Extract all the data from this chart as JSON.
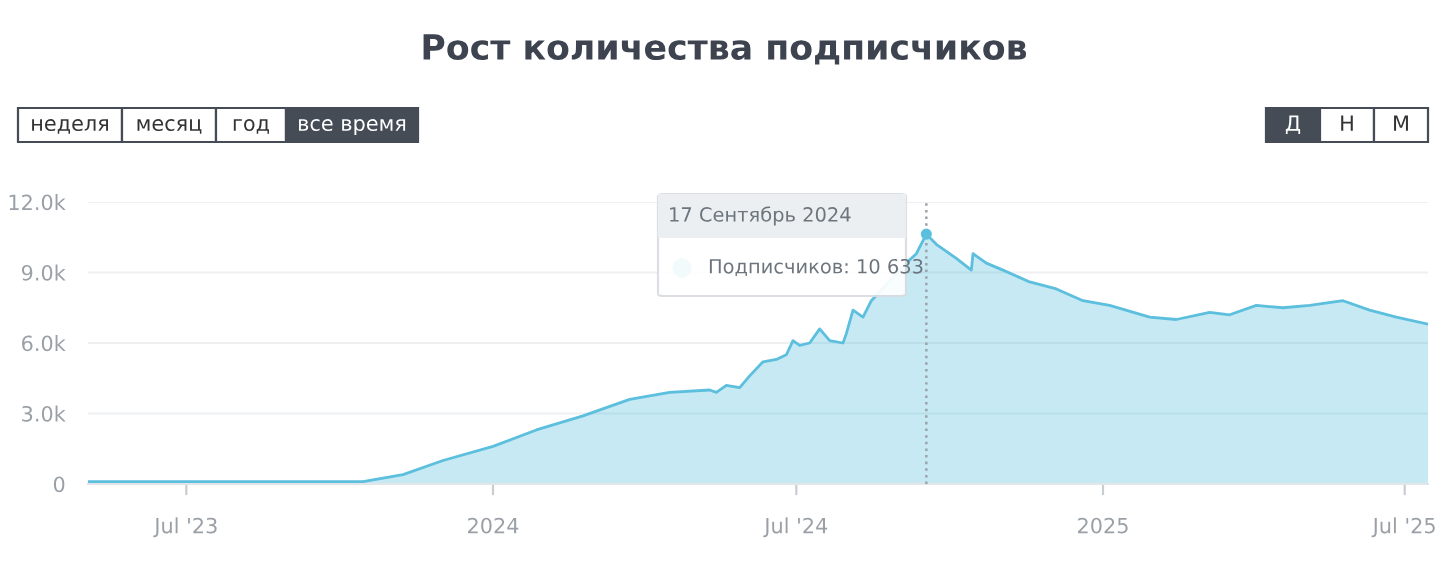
{
  "chart_data": {
    "type": "area",
    "title": "Рост количества подписчиков",
    "x": [
      "2023-05-03",
      "2023-08-19",
      "2023-09-21",
      "2023-10-15",
      "2023-11-08",
      "2023-12-02",
      "2024-01-01",
      "2024-01-27",
      "2024-02-24",
      "2024-03-23",
      "2024-04-16",
      "2024-05-10",
      "2024-05-14",
      "2024-05-20",
      "2024-05-28",
      "2024-06-03",
      "2024-06-11",
      "2024-06-19",
      "2024-06-25",
      "2024-06-29",
      "2024-07-03",
      "2024-07-09",
      "2024-07-15",
      "2024-07-21",
      "2024-07-29",
      "2024-07-31",
      "2024-08-04",
      "2024-08-10",
      "2024-08-15",
      "2024-09-05",
      "2024-09-11",
      "2024-09-17",
      "2024-09-23",
      "2024-10-05",
      "2024-10-14",
      "2024-10-15",
      "2024-10-23",
      "2024-11-02",
      "2024-11-18",
      "2024-12-04",
      "2024-12-20",
      "2025-01-05",
      "2025-01-29",
      "2025-02-14",
      "2025-03-06",
      "2025-03-18",
      "2025-04-03",
      "2025-04-19",
      "2025-05-05",
      "2025-05-25",
      "2025-06-10",
      "2025-06-26",
      "2025-07-15"
    ],
    "series": [
      {
        "color": "#5bbfdd",
        "values": [
          100,
          100,
          100,
          100,
          400,
          1000,
          1600,
          2300,
          2900,
          3600,
          3900,
          4000,
          3900,
          4200,
          4100,
          4600,
          5200,
          5300,
          5500,
          6100,
          5900,
          6000,
          6600,
          6100,
          6000,
          6400,
          7400,
          7100,
          7800,
          9400,
          9800,
          10633,
          10200,
          9600,
          9100,
          9800,
          9400,
          9100,
          8600,
          8300,
          7800,
          7600,
          7100,
          7000,
          7300,
          7200,
          7600,
          7500,
          7600,
          7800,
          7400,
          7100,
          6800
        ]
      }
    ],
    "xlim": [
      "2023-05-03",
      "2025-07-15"
    ],
    "xticks": [
      {
        "value": "2023-07-01",
        "label": "Jul '23"
      },
      {
        "value": "2024-01-01",
        "label": "2024"
      },
      {
        "value": "2024-07-01",
        "label": "Jul '24"
      },
      {
        "value": "2025-01-01",
        "label": "2025"
      },
      {
        "value": "2025-07-01",
        "label": "Jul '25"
      }
    ],
    "ylim": [
      0,
      12000
    ],
    "yticks": [
      0,
      {
        "value": 3000,
        "label": "3.0k"
      },
      {
        "value": 6000,
        "label": "6.0k"
      },
      {
        "value": 9000,
        "label": "9.0k"
      },
      {
        "value": 12000,
        "label": "12.0k"
      }
    ],
    "grid": "y",
    "ref_lines": [
      {
        "axis": "x",
        "value": "2024-09-17",
        "color": "#9aa3ab",
        "line_style": "dotted"
      }
    ],
    "annotations": [
      "неделя",
      "месяц",
      "год",
      "все время",
      "Д",
      "Н",
      "М",
      "17 Сентябрь 2024",
      {
        "text": "Подписчиков: 10 633",
        "x": "2024-09-17",
        "y": 10633
      }
    ]
  }
}
